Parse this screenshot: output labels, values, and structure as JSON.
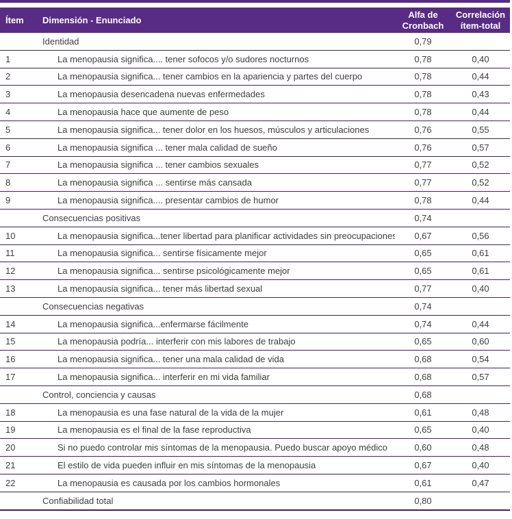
{
  "page": {
    "background": "#ffffff"
  },
  "table": {
    "accent_color": "#582b85",
    "line_color": "#3f1f60",
    "header": {
      "item": "Ítem",
      "dimension": "Dimensión - Enunciado",
      "alfa": "Alfa de\nCronbach",
      "correlacion": "Correlación\nítem-total"
    },
    "rows": [
      {
        "type": "section",
        "item": "",
        "text": "Identidad",
        "alfa": "0,79",
        "corr": ""
      },
      {
        "type": "item",
        "item": "1",
        "text": "La menopausia significa.... tener sofocos y/o sudores nocturnos",
        "alfa": "0,78",
        "corr": "0,40"
      },
      {
        "type": "item",
        "item": "2",
        "text": "La menopausia significa... tener cambios en la apariencia y partes del cuerpo",
        "alfa": "0,78",
        "corr": "0,44"
      },
      {
        "type": "item",
        "item": "3",
        "text": "La menopausia desencadena nuevas enfermedades",
        "alfa": "0,78",
        "corr": "0,43"
      },
      {
        "type": "item",
        "item": "4",
        "text": "La menopausia hace que aumente de peso",
        "alfa": "0,78",
        "corr": "0,44"
      },
      {
        "type": "item",
        "item": "5",
        "text": "La menopausia significa... tener dolor en los huesos, músculos y articulaciones",
        "alfa": "0,76",
        "corr": "0,55"
      },
      {
        "type": "item",
        "item": "6",
        "text": "La menopausia significa ... tener mala calidad de sueño",
        "alfa": "0,76",
        "corr": "0,57"
      },
      {
        "type": "item",
        "item": "7",
        "text": "La menopausia significa ... tener cambios sexuales",
        "alfa": "0,77",
        "corr": "0,52"
      },
      {
        "type": "item",
        "item": "8",
        "text": "La menopausia significa ... sentirse más cansada",
        "alfa": "0,77",
        "corr": "0,52"
      },
      {
        "type": "item",
        "item": "9",
        "text": "La menopausia significa.... presentar cambios de humor",
        "alfa": "0,78",
        "corr": "0,44"
      },
      {
        "type": "section",
        "item": "",
        "text": "Consecuencias positivas",
        "alfa": "0,74",
        "corr": ""
      },
      {
        "type": "item",
        "item": "10",
        "text": "La menopausia significa...tener libertad para planificar actividades sin preocupaciones",
        "alfa": "0,67",
        "corr": "0,56"
      },
      {
        "type": "item",
        "item": "11",
        "text": "La menopausia significa... sentirse físicamente mejor",
        "alfa": "0,65",
        "corr": "0,61"
      },
      {
        "type": "item",
        "item": "12",
        "text": "La menopausia significa... sentirse psicológicamente mejor",
        "alfa": "0,65",
        "corr": "0,61"
      },
      {
        "type": "item",
        "item": "13",
        "text": "La menopausia significa... tener más libertad sexual",
        "alfa": "0,77",
        "corr": "0,40"
      },
      {
        "type": "section",
        "item": "",
        "text": "Consecuencias negativas",
        "alfa": "0,74",
        "corr": ""
      },
      {
        "type": "item",
        "item": "14",
        "text": "La menopausia significa...enfermarse fácilmente",
        "alfa": "0,74",
        "corr": "0,44"
      },
      {
        "type": "item",
        "item": "15",
        "text": "La menopausia podría... interferir con mis labores de trabajo",
        "alfa": "0,65",
        "corr": "0,60"
      },
      {
        "type": "item",
        "item": "16",
        "text": "La menopausia significa... tener una mala calidad de vida",
        "alfa": "0,68",
        "corr": "0,54"
      },
      {
        "type": "item",
        "item": "17",
        "text": "La menopausia significa... interferir en mi vida familiar",
        "alfa": "0,68",
        "corr": "0,57"
      },
      {
        "type": "section",
        "item": "",
        "text": "Control, conciencia y causas",
        "alfa": "0,68",
        "corr": ""
      },
      {
        "type": "item",
        "item": "18",
        "text": "La menopausia es una fase natural de la vida de la mujer",
        "alfa": "0,61",
        "corr": "0,48"
      },
      {
        "type": "item",
        "item": "19",
        "text": "La menopausia es el final de la fase reproductiva",
        "alfa": "0,65",
        "corr": "0,40"
      },
      {
        "type": "item",
        "item": "20",
        "text": "Si no puedo controlar mis síntomas de la menopausia. Puedo buscar apoyo médico",
        "alfa": "0,60",
        "corr": "0,48"
      },
      {
        "type": "item",
        "item": "21",
        "text": "El estilo de vida pueden influir en mis síntomas de la menopausia",
        "alfa": "0,67",
        "corr": "0,40"
      },
      {
        "type": "item",
        "item": "22",
        "text": "La menopausia es causada por los cambios hormonales",
        "alfa": "0,61",
        "corr": "0,47"
      },
      {
        "type": "total",
        "item": "",
        "text": "Confiabilidad total",
        "alfa": "0,80",
        "corr": ""
      }
    ]
  }
}
